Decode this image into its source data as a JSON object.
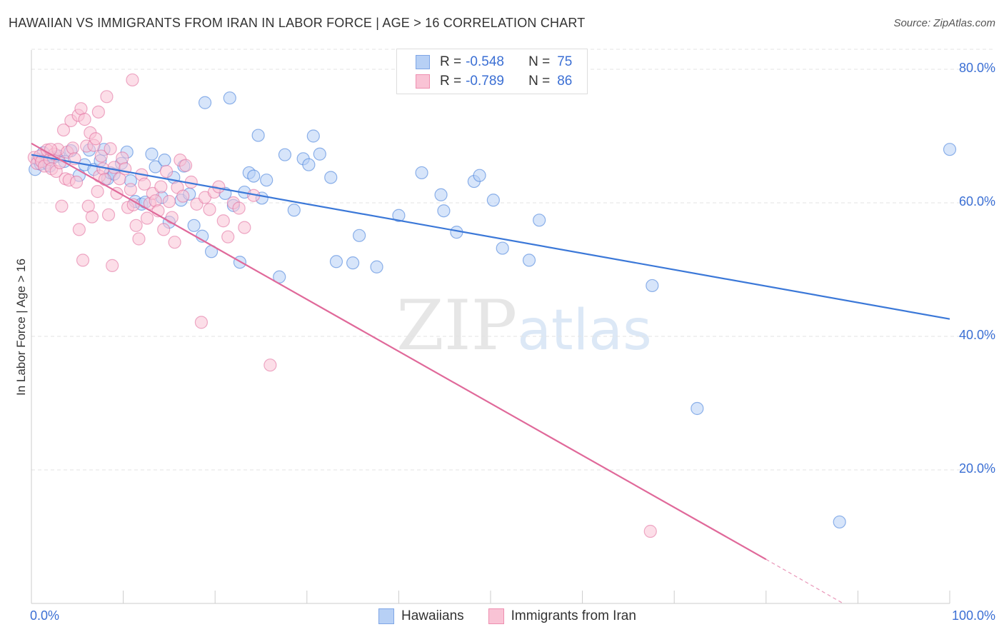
{
  "title": "HAWAIIAN VS IMMIGRANTS FROM IRAN IN LABOR FORCE | AGE > 16 CORRELATION CHART",
  "source": "Source: ZipAtlas.com",
  "watermark": {
    "zip": "ZIP",
    "atlas": "atlas"
  },
  "legend_top": [
    {
      "r_label": "R =",
      "r_value": "-0.548",
      "n_label": "N =",
      "n_value": "75",
      "fill": "#b7d0f5",
      "stroke": "#7fa6e6"
    },
    {
      "r_label": "R =",
      "r_value": "-0.789",
      "n_label": "N =",
      "n_value": "86",
      "fill": "#f9c3d5",
      "stroke": "#ee8fb0"
    }
  ],
  "chart_data": {
    "type": "scatter",
    "title": "HAWAIIAN VS IMMIGRANTS FROM IRAN IN LABOR FORCE | AGE > 16 CORRELATION CHART",
    "xlabel": "",
    "ylabel": "In Labor Force | Age > 16",
    "xlim": [
      0,
      100
    ],
    "ylim": [
      0,
      83
    ],
    "x_tick_labels": [
      "0.0%",
      "100.0%"
    ],
    "y_ticks": [
      20,
      40,
      60,
      80
    ],
    "y_tick_labels": [
      "20.0%",
      "40.0%",
      "60.0%",
      "80.0%"
    ],
    "grid": true,
    "legend_position": "bottom",
    "series": [
      {
        "name": "Hawaiians",
        "color": "#3b78d8",
        "fill": "#b7d0f5",
        "trend": {
          "x": [
            0,
            100
          ],
          "y": [
            67.2,
            42.6
          ]
        },
        "points": [
          [
            0.4,
            65.0
          ],
          [
            0.7,
            66.5
          ],
          [
            1.0,
            65.8
          ],
          [
            1.3,
            67.5
          ],
          [
            1.6,
            66.0
          ],
          [
            2.0,
            65.5
          ],
          [
            2.4,
            66.8
          ],
          [
            3.0,
            67.0
          ],
          [
            3.6,
            66.2
          ],
          [
            4.3,
            67.8
          ],
          [
            5.2,
            64.1
          ],
          [
            5.8,
            65.7
          ],
          [
            6.3,
            67.9
          ],
          [
            6.8,
            65.0
          ],
          [
            7.5,
            66.3
          ],
          [
            7.9,
            68.0
          ],
          [
            8.3,
            63.6
          ],
          [
            8.6,
            64.5
          ],
          [
            9.0,
            64.3
          ],
          [
            9.8,
            65.9
          ],
          [
            10.4,
            67.6
          ],
          [
            10.8,
            63.3
          ],
          [
            11.3,
            60.2
          ],
          [
            12.0,
            59.8
          ],
          [
            12.4,
            60.1
          ],
          [
            13.1,
            67.3
          ],
          [
            13.5,
            65.4
          ],
          [
            14.2,
            60.8
          ],
          [
            14.5,
            66.4
          ],
          [
            15.0,
            57.1
          ],
          [
            15.5,
            63.8
          ],
          [
            16.3,
            60.4
          ],
          [
            16.6,
            65.5
          ],
          [
            17.2,
            61.3
          ],
          [
            17.7,
            56.6
          ],
          [
            18.6,
            55.0
          ],
          [
            18.9,
            75.0
          ],
          [
            19.6,
            52.7
          ],
          [
            21.1,
            61.4
          ],
          [
            21.6,
            75.7
          ],
          [
            22.0,
            59.6
          ],
          [
            22.7,
            51.1
          ],
          [
            23.2,
            61.6
          ],
          [
            23.7,
            64.5
          ],
          [
            24.2,
            64.0
          ],
          [
            24.7,
            70.1
          ],
          [
            25.1,
            60.7
          ],
          [
            25.6,
            63.4
          ],
          [
            27.0,
            48.9
          ],
          [
            27.6,
            67.2
          ],
          [
            28.6,
            58.9
          ],
          [
            29.6,
            66.6
          ],
          [
            30.2,
            65.7
          ],
          [
            30.7,
            70.0
          ],
          [
            31.4,
            67.3
          ],
          [
            32.6,
            63.8
          ],
          [
            33.2,
            51.2
          ],
          [
            35.0,
            51.0
          ],
          [
            35.7,
            55.1
          ],
          [
            37.6,
            50.4
          ],
          [
            40.0,
            58.1
          ],
          [
            42.5,
            64.5
          ],
          [
            44.6,
            61.2
          ],
          [
            44.9,
            58.8
          ],
          [
            46.3,
            55.6
          ],
          [
            48.2,
            63.2
          ],
          [
            48.8,
            64.1
          ],
          [
            50.3,
            60.4
          ],
          [
            51.3,
            53.2
          ],
          [
            54.2,
            51.4
          ],
          [
            55.3,
            57.4
          ],
          [
            67.6,
            47.6
          ],
          [
            72.5,
            29.2
          ],
          [
            88.0,
            12.2
          ],
          [
            100.0,
            68.0
          ]
        ]
      },
      {
        "name": "Immigrants from Iran",
        "color": "#e0699a",
        "fill": "#f9c3d5",
        "trend": {
          "x": [
            0,
            80
          ],
          "y": [
            68.9,
            6.6
          ]
        },
        "trend_dashed": {
          "x": [
            80,
            88.4
          ],
          "y": [
            6.6,
            0
          ]
        },
        "points": [
          [
            0.3,
            66.8
          ],
          [
            0.6,
            65.9
          ],
          [
            0.9,
            67.0
          ],
          [
            1.1,
            66.2
          ],
          [
            1.4,
            65.5
          ],
          [
            1.7,
            67.9
          ],
          [
            2.0,
            66.5
          ],
          [
            2.2,
            65.1
          ],
          [
            2.5,
            67.3
          ],
          [
            2.7,
            64.7
          ],
          [
            2.9,
            68.0
          ],
          [
            3.1,
            66.0
          ],
          [
            3.3,
            59.5
          ],
          [
            3.5,
            70.9
          ],
          [
            3.7,
            63.6
          ],
          [
            3.9,
            67.6
          ],
          [
            4.1,
            63.4
          ],
          [
            4.3,
            72.3
          ],
          [
            4.5,
            68.2
          ],
          [
            4.7,
            66.6
          ],
          [
            4.9,
            63.1
          ],
          [
            5.1,
            73.1
          ],
          [
            5.2,
            56.0
          ],
          [
            5.4,
            74.1
          ],
          [
            5.6,
            51.4
          ],
          [
            5.8,
            72.5
          ],
          [
            6.0,
            68.5
          ],
          [
            6.2,
            59.5
          ],
          [
            6.4,
            70.5
          ],
          [
            6.6,
            57.9
          ],
          [
            6.8,
            68.6
          ],
          [
            7.0,
            69.6
          ],
          [
            7.2,
            61.7
          ],
          [
            7.4,
            64.0
          ],
          [
            7.6,
            67.0
          ],
          [
            7.8,
            65.1
          ],
          [
            8.0,
            63.5
          ],
          [
            8.2,
            75.9
          ],
          [
            8.4,
            58.2
          ],
          [
            8.6,
            68.1
          ],
          [
            8.8,
            50.6
          ],
          [
            9.0,
            65.3
          ],
          [
            9.3,
            61.4
          ],
          [
            9.6,
            63.6
          ],
          [
            9.9,
            66.7
          ],
          [
            10.2,
            65.1
          ],
          [
            10.5,
            59.3
          ],
          [
            10.8,
            62.0
          ],
          [
            11.1,
            59.7
          ],
          [
            11.4,
            56.6
          ],
          [
            11.7,
            54.6
          ],
          [
            12.0,
            64.2
          ],
          [
            12.3,
            62.8
          ],
          [
            12.6,
            57.7
          ],
          [
            12.9,
            59.9
          ],
          [
            13.2,
            61.4
          ],
          [
            13.5,
            60.3
          ],
          [
            13.8,
            58.8
          ],
          [
            14.1,
            62.4
          ],
          [
            14.4,
            56.0
          ],
          [
            14.7,
            64.7
          ],
          [
            15.0,
            60.2
          ],
          [
            15.3,
            57.8
          ],
          [
            15.6,
            54.1
          ],
          [
            15.9,
            62.3
          ],
          [
            16.2,
            66.4
          ],
          [
            16.5,
            61.0
          ],
          [
            16.8,
            65.6
          ],
          [
            17.4,
            63.1
          ],
          [
            18.0,
            59.8
          ],
          [
            18.5,
            42.1
          ],
          [
            18.9,
            60.8
          ],
          [
            19.4,
            59.0
          ],
          [
            19.9,
            61.6
          ],
          [
            20.4,
            62.4
          ],
          [
            20.9,
            57.3
          ],
          [
            21.4,
            54.9
          ],
          [
            22.0,
            60.0
          ],
          [
            22.6,
            59.2
          ],
          [
            23.2,
            56.3
          ],
          [
            24.2,
            61.1
          ],
          [
            26.0,
            35.7
          ],
          [
            11.0,
            78.4
          ],
          [
            7.3,
            73.6
          ],
          [
            67.4,
            10.8
          ],
          [
            2.1,
            68.0
          ]
        ]
      }
    ]
  }
}
